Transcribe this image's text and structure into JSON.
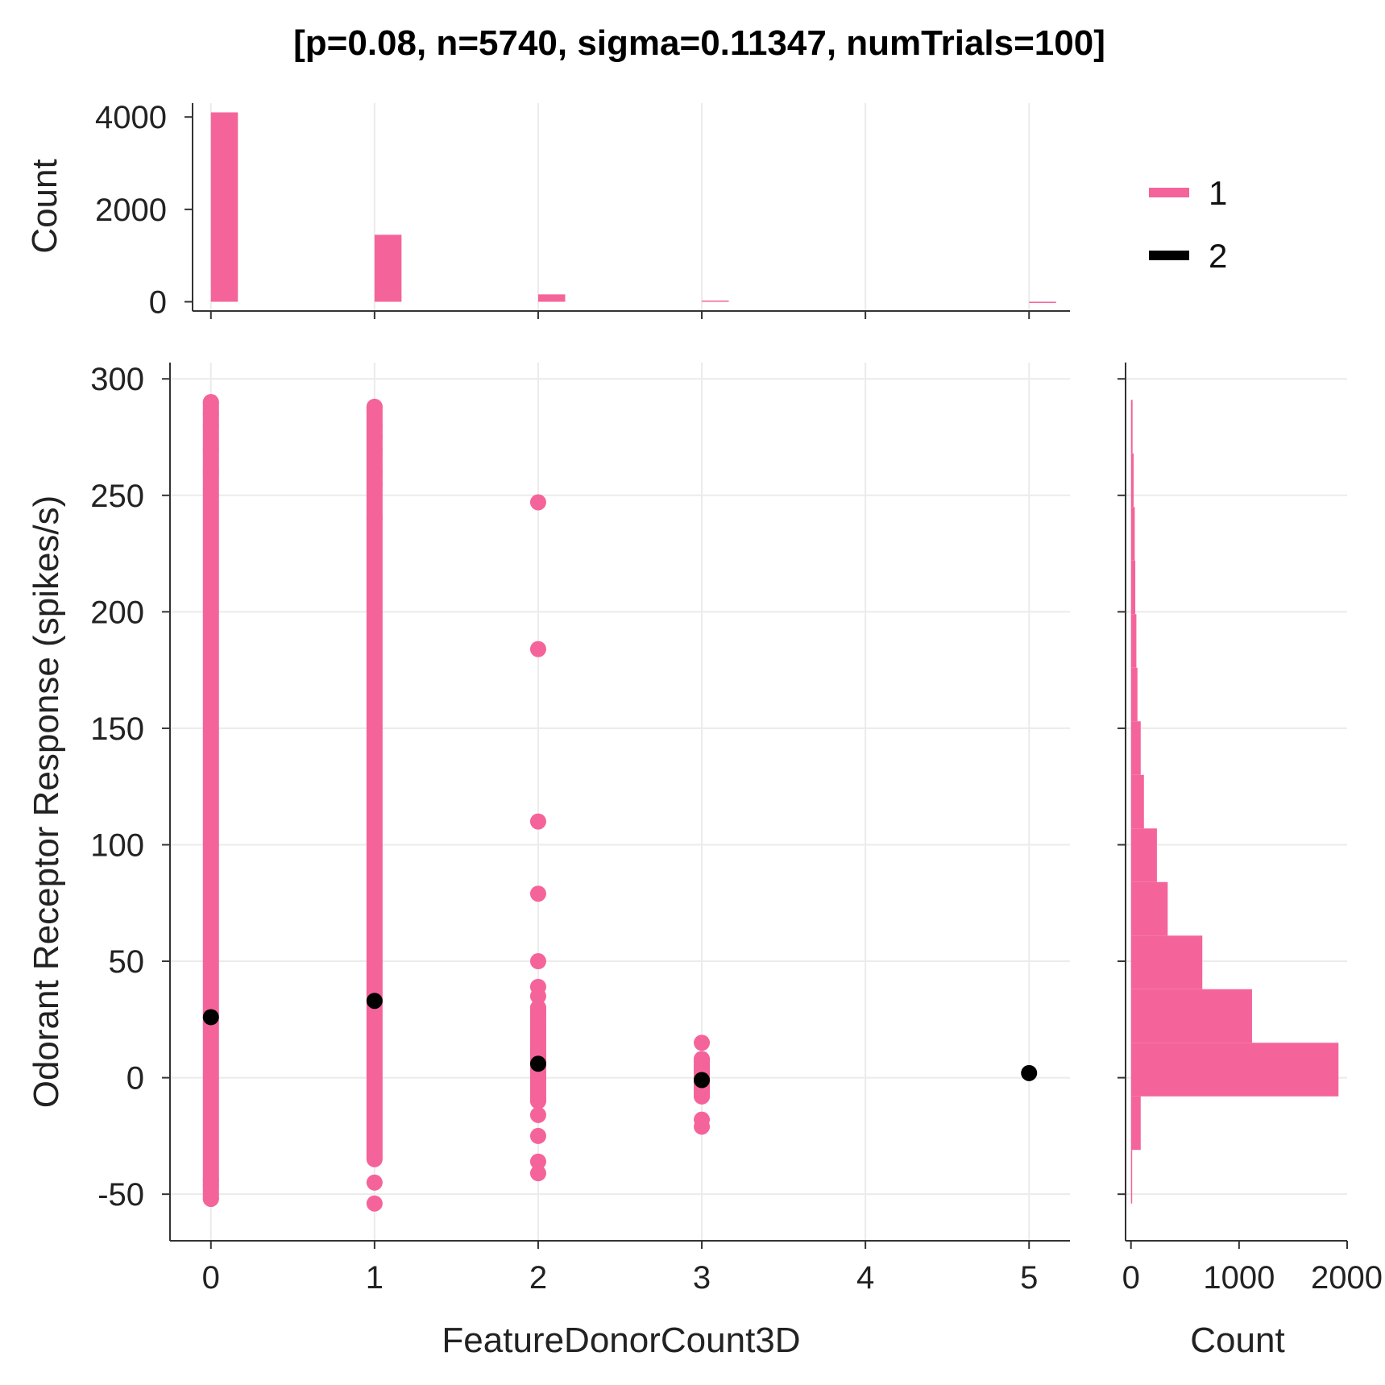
{
  "chart_data": {
    "type": "scatter",
    "title": "[p=0.08, n=5740, sigma=0.11347, numTrials=100]",
    "colors": {
      "series1": "#f4649a",
      "series2": "#000000",
      "grid": "#ebebeb",
      "axis": "#333333"
    },
    "legend": {
      "placement": "top-right",
      "entries": [
        "1",
        "2"
      ]
    },
    "main": {
      "xlabel": "FeatureDonorCount3D",
      "ylabel": "Odorant Receptor Response (spikes/s)",
      "xlim": [
        -0.25,
        5.25
      ],
      "ylim": [
        -70,
        307
      ],
      "xticks": [
        0,
        1,
        2,
        3,
        4,
        5
      ],
      "yticks": [
        -50,
        0,
        50,
        100,
        150,
        200,
        250,
        300
      ],
      "grid": true,
      "series1_columns": [
        {
          "x": 0,
          "min": -52,
          "max": 290,
          "points": [
            -52,
            -46,
            -44,
            260,
            270,
            280,
            285,
            290
          ]
        },
        {
          "x": 1,
          "min": -35,
          "max": 288,
          "points": [
            -54,
            -45,
            240,
            255,
            260,
            270,
            275,
            280,
            288
          ]
        },
        {
          "x": 2,
          "min": -10,
          "max": 30,
          "points": [
            -41,
            -36,
            -25,
            -16,
            -10,
            0,
            10,
            20,
            30,
            35,
            39,
            50,
            79,
            110,
            184,
            247
          ]
        },
        {
          "x": 3,
          "min": -8,
          "max": 8,
          "points": [
            -21,
            -18,
            -8,
            -5,
            0,
            5,
            8,
            15
          ]
        }
      ],
      "series2_points": [
        {
          "x": 0,
          "y": 26
        },
        {
          "x": 1,
          "y": 33
        },
        {
          "x": 2,
          "y": 6
        },
        {
          "x": 3,
          "y": -1
        },
        {
          "x": 5,
          "y": 2
        }
      ]
    },
    "top_histogram": {
      "ylabel": "Count",
      "yticks": [
        0,
        2000,
        4000
      ],
      "ylim": [
        -200,
        4300
      ],
      "bars": [
        {
          "x": 0,
          "count": 4100
        },
        {
          "x": 1,
          "count": 1450
        },
        {
          "x": 2,
          "count": 160
        },
        {
          "x": 3,
          "count": 25
        },
        {
          "x": 5,
          "count": 1
        }
      ]
    },
    "right_histogram": {
      "xlabel": "Count",
      "xticks": [
        0,
        1000,
        2000
      ],
      "xlim": [
        -50,
        2000
      ],
      "bin_width": 23,
      "bins": [
        {
          "start": -54,
          "count": 5
        },
        {
          "start": -31,
          "count": 90
        },
        {
          "start": -8,
          "count": 1920
        },
        {
          "start": 15,
          "count": 1120
        },
        {
          "start": 38,
          "count": 660
        },
        {
          "start": 61,
          "count": 340
        },
        {
          "start": 84,
          "count": 240
        },
        {
          "start": 107,
          "count": 120
        },
        {
          "start": 130,
          "count": 90
        },
        {
          "start": 153,
          "count": 60
        },
        {
          "start": 176,
          "count": 50
        },
        {
          "start": 199,
          "count": 40
        },
        {
          "start": 222,
          "count": 35
        },
        {
          "start": 245,
          "count": 25
        },
        {
          "start": 268,
          "count": 15
        }
      ]
    }
  }
}
